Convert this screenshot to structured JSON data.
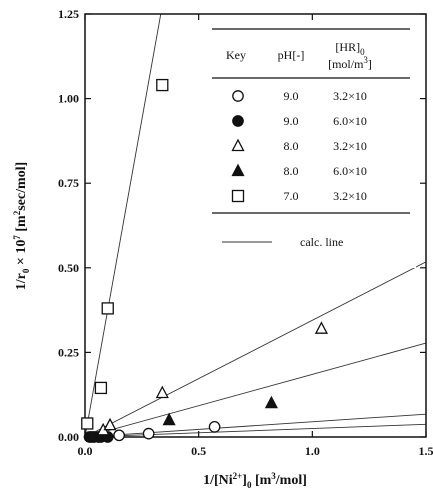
{
  "chart_data": {
    "type": "scatter",
    "xlabel_parts": [
      "1/[Ni",
      "2+",
      "]",
      "0",
      " [m",
      "3",
      "/mol]"
    ],
    "ylabel_parts": [
      "1/r",
      "0",
      " × 10",
      "7",
      " [m",
      "2",
      "sec/mol]"
    ],
    "xlim": [
      0,
      1.5
    ],
    "ylim": [
      0,
      1.25
    ],
    "x_ticks": [
      0.0,
      0.5,
      1.0,
      1.5
    ],
    "x_tick_labels": [
      "0.0",
      "0.5",
      "1.0",
      "1.5"
    ],
    "y_ticks": [
      0,
      0.25,
      0.5,
      0.75,
      1.0,
      1.25
    ],
    "y_tick_labels": [
      "0.00",
      "0.25",
      "0.50",
      "0.75",
      "1.00",
      "1.25"
    ],
    "legend": {
      "header": {
        "key": "Key",
        "ph": "pH[-]",
        "hr_line1": "[HR]",
        "hr_sub": "0",
        "hr_line2": "[mol/m",
        "hr_sup": "3",
        "hr_close": "]"
      },
      "entries": [
        {
          "marker": "open-circle",
          "ph": "9.0",
          "hr": "3.2×10"
        },
        {
          "marker": "filled-circle",
          "ph": "9.0",
          "hr": "6.0×10"
        },
        {
          "marker": "open-triangle",
          "ph": "8.0",
          "hr": "3.2×10"
        },
        {
          "marker": "filled-triangle",
          "ph": "8.0",
          "hr": "6.0×10"
        },
        {
          "marker": "open-square",
          "ph": "7.0",
          "hr": "3.2×10"
        }
      ],
      "calc_label": "calc. line"
    },
    "series": [
      {
        "marker": "open-circle",
        "points": [
          [
            0.03,
            0.0
          ],
          [
            0.06,
            0.0
          ],
          [
            0.15,
            0.005
          ],
          [
            0.28,
            0.01
          ],
          [
            0.57,
            0.03
          ]
        ],
        "calc_slope": 0.045
      },
      {
        "marker": "filled-circle",
        "points": [
          [
            0.02,
            0.0
          ],
          [
            0.04,
            0.0
          ],
          [
            0.07,
            0.0
          ],
          [
            0.1,
            0.0
          ]
        ],
        "calc_slope": 0.025
      },
      {
        "marker": "open-triangle",
        "points": [
          [
            0.08,
            0.02
          ],
          [
            0.11,
            0.035
          ],
          [
            0.34,
            0.13
          ],
          [
            1.04,
            0.32
          ]
        ],
        "calc_slope": 0.345
      },
      {
        "marker": "filled-triangle",
        "points": [
          [
            0.37,
            0.05
          ],
          [
            0.82,
            0.1
          ]
        ],
        "calc_slope": 0.185
      },
      {
        "marker": "open-square",
        "points": [
          [
            0.01,
            0.04
          ],
          [
            0.07,
            0.145
          ],
          [
            0.1,
            0.38
          ],
          [
            0.34,
            1.04
          ]
        ],
        "calc_slope": 3.75
      }
    ]
  }
}
